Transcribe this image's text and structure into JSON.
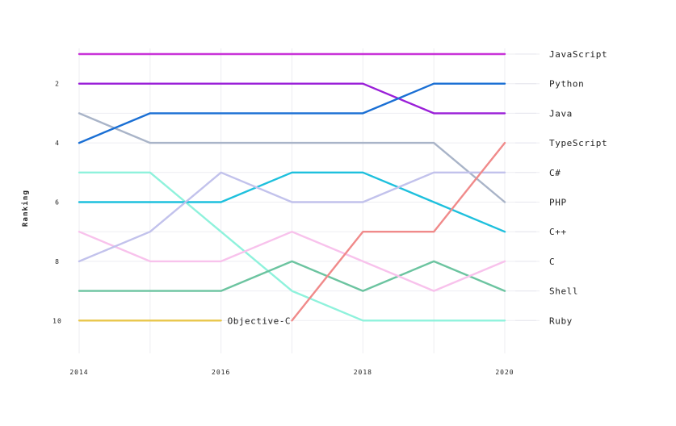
{
  "chart_data": {
    "type": "line",
    "title": "",
    "xlabel": "",
    "ylabel": "Ranking",
    "x": [
      2014,
      2015,
      2016,
      2017,
      2018,
      2019,
      2020
    ],
    "x_ticks": [
      "2014",
      "2016",
      "2018",
      "2020"
    ],
    "y_ticks": [
      "2",
      "4",
      "6",
      "8",
      "10"
    ],
    "ylim": [
      11,
      1
    ],
    "y_inverted": true,
    "grid": true,
    "annotation": {
      "text": "Objective-C",
      "series": "Objective-C"
    },
    "series": [
      {
        "name": "JavaScript",
        "color": "#c832d8",
        "values": [
          1,
          1,
          1,
          1,
          1,
          1,
          1
        ]
      },
      {
        "name": "Python",
        "color": "#1a6fd4",
        "values": [
          4,
          3,
          3,
          3,
          3,
          2,
          2
        ]
      },
      {
        "name": "Java",
        "color": "#9a1fd8",
        "values": [
          2,
          2,
          2,
          2,
          2,
          3,
          3
        ]
      },
      {
        "name": "TypeScript",
        "color": "#f08a8a",
        "values": [
          null,
          null,
          null,
          10,
          7,
          7,
          4
        ]
      },
      {
        "name": "C#",
        "color": "#c2c2ec",
        "values": [
          8,
          7,
          5,
          6,
          6,
          5,
          5
        ]
      },
      {
        "name": "PHP",
        "color": "#a9b4c8",
        "values": [
          3,
          4,
          4,
          4,
          4,
          4,
          6
        ]
      },
      {
        "name": "C++",
        "color": "#1ec0dd",
        "values": [
          6,
          6,
          6,
          5,
          5,
          6,
          7
        ]
      },
      {
        "name": "C",
        "color": "#f8c2ec",
        "values": [
          7,
          8,
          8,
          7,
          8,
          9,
          8
        ]
      },
      {
        "name": "Shell",
        "color": "#6cc4a0",
        "values": [
          9,
          9,
          9,
          8,
          9,
          8,
          9
        ]
      },
      {
        "name": "Ruby",
        "color": "#8ff2dc",
        "values": [
          5,
          5,
          7,
          9,
          10,
          10,
          10
        ]
      },
      {
        "name": "Objective-C",
        "color": "#e8c64a",
        "values": [
          10,
          10,
          10,
          null,
          null,
          null,
          null
        ]
      }
    ],
    "label_order": [
      "JavaScript",
      "Python",
      "Java",
      "TypeScript",
      "C#",
      "PHP",
      "C++",
      "C",
      "Shell",
      "Ruby"
    ]
  }
}
